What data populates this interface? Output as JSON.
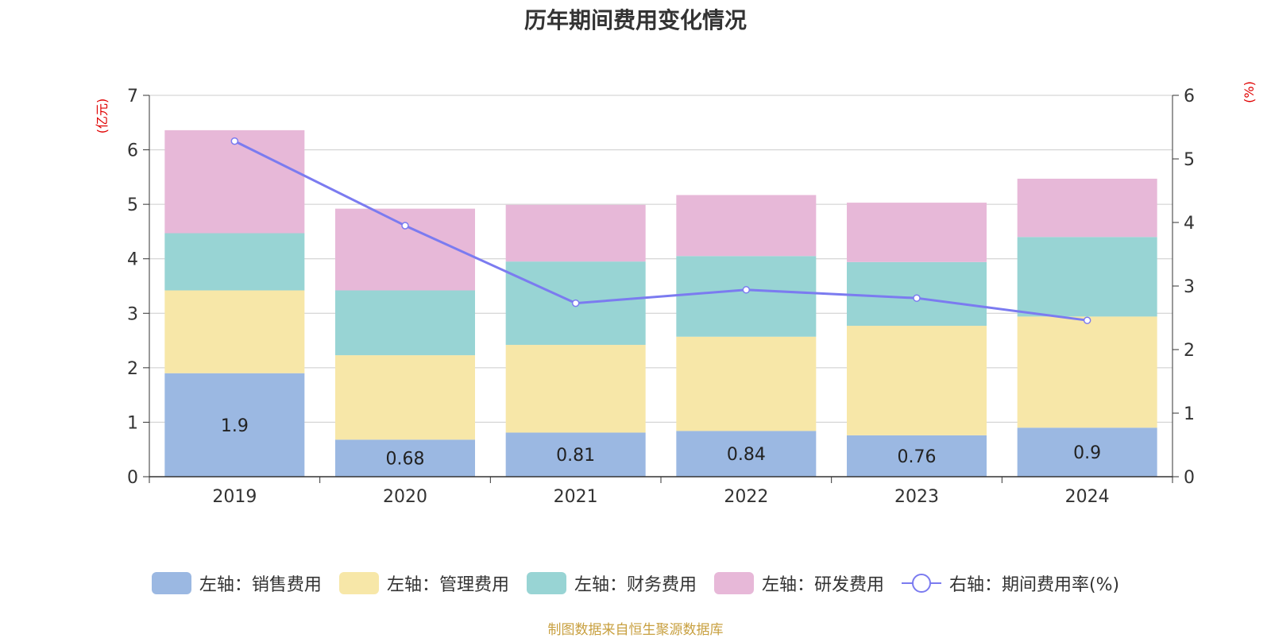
{
  "chart_data": {
    "type": "bar",
    "stacked": true,
    "title": "历年期间费用变化情况",
    "categories": [
      "2019",
      "2020",
      "2021",
      "2022",
      "2023",
      "2024"
    ],
    "left_axis": {
      "unit": "(亿元)",
      "ylim": [
        0,
        7
      ],
      "ticks": [
        0,
        1,
        2,
        3,
        4,
        5,
        6,
        7
      ]
    },
    "right_axis": {
      "unit": "(%)",
      "ylim": [
        0,
        6
      ],
      "ticks": [
        0,
        1,
        2,
        3,
        4,
        5,
        6
      ]
    },
    "series": [
      {
        "name": "左轴：销售费用",
        "axis": "left",
        "color": "#9bb8e2",
        "values": [
          1.9,
          0.68,
          0.81,
          0.84,
          0.76,
          0.9
        ],
        "labels": [
          "1.9",
          "0.68",
          "0.81",
          "0.84",
          "0.76",
          "0.9"
        ]
      },
      {
        "name": "左轴：管理费用",
        "axis": "left",
        "color": "#f7e7a8",
        "values": [
          1.52,
          1.55,
          1.61,
          1.73,
          2.01,
          2.04
        ]
      },
      {
        "name": "左轴：财务费用",
        "axis": "left",
        "color": "#98d4d4",
        "values": [
          1.05,
          1.19,
          1.53,
          1.48,
          1.17,
          1.46
        ]
      },
      {
        "name": "左轴：研发费用",
        "axis": "left",
        "color": "#e7b8d8",
        "values": [
          1.89,
          1.5,
          1.04,
          1.12,
          1.09,
          1.07
        ]
      }
    ],
    "line": {
      "name": "右轴：期间费用率(%)",
      "axis": "right",
      "color": "#7b7bf0",
      "values": [
        5.28,
        3.95,
        2.73,
        2.94,
        2.81,
        2.46
      ]
    },
    "grid": true,
    "legend_position": "bottom"
  },
  "footer": "制图数据来自恒生聚源数据库"
}
